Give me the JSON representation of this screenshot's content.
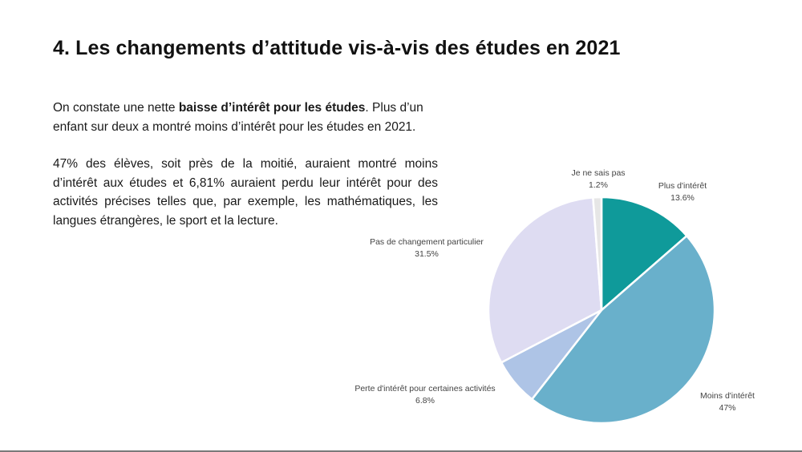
{
  "slide": {
    "title": "4. Les changements d’attitude vis-à-vis des études en 2021",
    "para1": {
      "before": "On constate une nette ",
      "bold": "baisse d’intérêt pour les études",
      "after": ". Plus d’un enfant sur deux a montré moins d’intérêt pour les études en 2021."
    },
    "para2": "47% des élèves, soit près de la moitié, auraient montré moins d’intérêt aux études et 6,81% auraient perdu leur intérêt pour des activités précises telles que, par exemple, les mathématiques, les langues étrangères, le sport et la lecture."
  },
  "chart_data": {
    "type": "pie",
    "start_angle_deg": 0,
    "direction": "clockwise",
    "slices": [
      {
        "label": "Plus d'intérêt",
        "value": 13.6,
        "value_label": "13.6%",
        "color": "#0f9a9a"
      },
      {
        "label": "Moins d'intérêt",
        "value": 47,
        "value_label": "47%",
        "color": "#69b0cb"
      },
      {
        "label": "Perte d'intérêt pour certaines activités",
        "value": 6.8,
        "value_label": "6.8%",
        "color": "#aec4e6"
      },
      {
        "label": "Pas de changement particulier",
        "value": 31.5,
        "value_label": "31.5%",
        "color": "#dedcf2"
      },
      {
        "label": "Je ne sais pas",
        "value": 1.2,
        "value_label": "1.2%",
        "color": "#e6e6e6"
      }
    ]
  }
}
